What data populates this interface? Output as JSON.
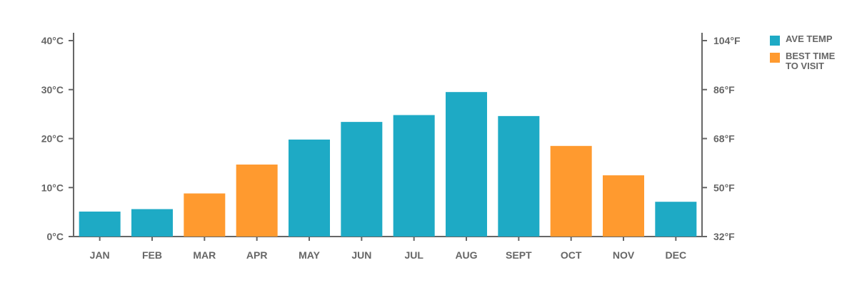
{
  "chart_data": {
    "type": "bar",
    "categories": [
      "JAN",
      "FEB",
      "MAR",
      "APR",
      "MAY",
      "JUN",
      "JUL",
      "AUG",
      "SEPT",
      "OCT",
      "NOV",
      "DEC"
    ],
    "values": [
      5.1,
      5.6,
      8.8,
      14.7,
      19.8,
      23.4,
      24.8,
      29.5,
      24.6,
      18.5,
      12.5,
      7.1
    ],
    "best_time_to_visit": [
      false,
      false,
      true,
      true,
      false,
      false,
      false,
      false,
      false,
      true,
      true,
      false
    ],
    "ylim": [
      0,
      40
    ],
    "left_axis_ticks": [
      "0°C",
      "10°C",
      "20°C",
      "30°C",
      "40°C"
    ],
    "right_axis_ticks": [
      "32°F",
      "50°F",
      "68°F",
      "86°F",
      "104°F"
    ],
    "legend": [
      {
        "label": "AVE TEMP",
        "color": "#1EAAC5"
      },
      {
        "label": "BEST TIME TO VISIT",
        "color": "#FF9A2F"
      }
    ],
    "legend_position": "right",
    "grid": false
  }
}
